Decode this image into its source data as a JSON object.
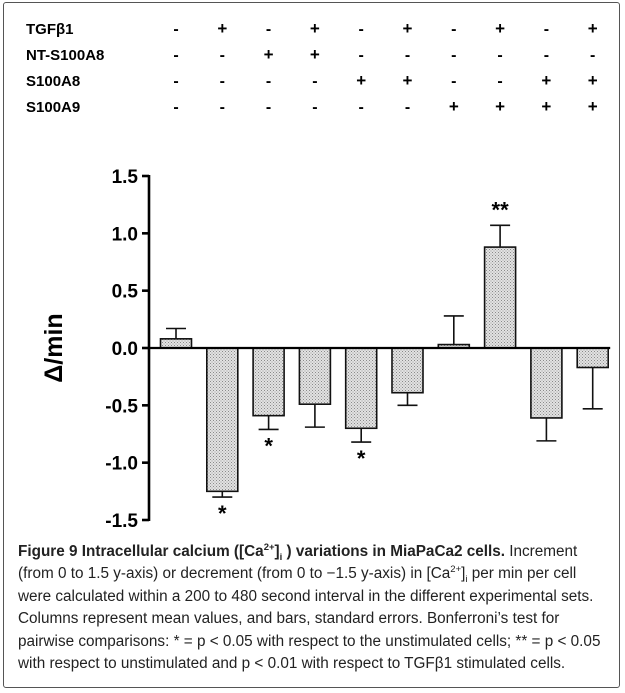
{
  "chart_data": {
    "type": "bar",
    "ylabel": "Δ/min",
    "ylim": [
      -1.5,
      1.5
    ],
    "yticks": [
      "1.5",
      "1.0",
      "0.5",
      "0.0",
      "-0.5",
      "-1.0",
      "-1.5"
    ],
    "ytick_values": [
      1.5,
      1.0,
      0.5,
      0.0,
      -0.5,
      -1.0,
      -1.5
    ],
    "values": [
      0.08,
      -1.25,
      -0.59,
      -0.49,
      -0.7,
      -0.39,
      0.03,
      0.88,
      -0.61,
      -0.17
    ],
    "errors": [
      0.09,
      0.05,
      0.12,
      0.2,
      0.12,
      0.11,
      0.25,
      0.19,
      0.2,
      0.36
    ],
    "significance": [
      "",
      "*",
      "*",
      "",
      "*",
      "",
      "",
      "**",
      "",
      ""
    ],
    "conditions": [
      {
        "label": "TGFβ1",
        "marks": [
          "-",
          "+",
          "-",
          "+",
          "-",
          "+",
          "-",
          "+",
          "-",
          "+"
        ]
      },
      {
        "label": "NT-S100A8",
        "marks": [
          "-",
          "-",
          "+",
          "+",
          "-",
          "-",
          "-",
          "-",
          "-",
          "-"
        ]
      },
      {
        "label": "S100A8",
        "marks": [
          "-",
          "-",
          "-",
          "-",
          "+",
          "+",
          "-",
          "-",
          "+",
          "+"
        ]
      },
      {
        "label": "S100A9",
        "marks": [
          "-",
          "-",
          "-",
          "-",
          "-",
          "-",
          "+",
          "+",
          "+",
          "+"
        ]
      }
    ],
    "colors": {
      "bar_fill": "#d4d4d4",
      "bar_stroke": "#111111",
      "axis": "#000000"
    }
  },
  "caption": {
    "label": "Figure 9",
    "title_a": "Intracellular calcium ([Ca",
    "title_sup": "2+",
    "title_b": "]",
    "title_sub": "i",
    "title_c": " ) variations in MiaPaCa2 cells.",
    "body_a": " Increment (from 0 to 1.5 y-axis) or decrement (from 0 to −1.5 y-axis) in [Ca",
    "body_sup": "2+",
    "body_b": "]",
    "body_sub": "i",
    "body_c": " per min per cell were calculated within a 200 to 480 second interval in the different experimental sets. Columns represent mean values, and bars, standard errors. Bonferroni’s test for pairwise comparisons: * = p < 0.05 with respect to the unstimulated cells; ** = p < 0.05 with respect to unstimulated and p < 0.01 with respect to TGFβ1 stimulated cells."
  }
}
